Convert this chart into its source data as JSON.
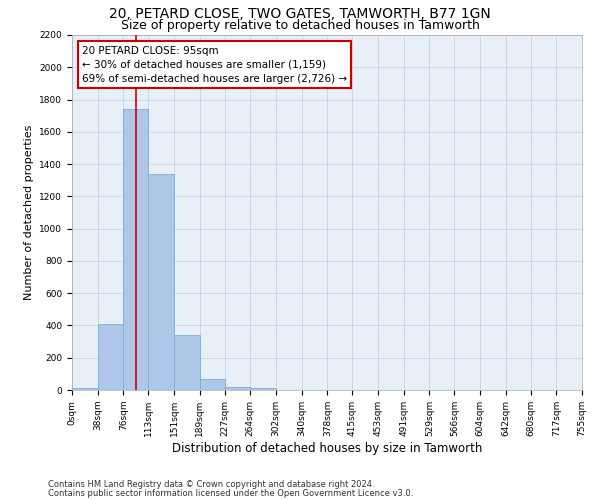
{
  "title": "20, PETARD CLOSE, TWO GATES, TAMWORTH, B77 1GN",
  "subtitle": "Size of property relative to detached houses in Tamworth",
  "xlabel": "Distribution of detached houses by size in Tamworth",
  "ylabel": "Number of detached properties",
  "bin_edges": [
    0,
    38,
    76,
    113,
    151,
    189,
    227,
    264,
    302,
    340,
    378,
    415,
    453,
    491,
    529,
    566,
    604,
    642,
    680,
    717,
    755
  ],
  "bar_heights": [
    15,
    410,
    1740,
    1340,
    340,
    70,
    20,
    15,
    0,
    0,
    0,
    0,
    0,
    0,
    0,
    0,
    0,
    0,
    0,
    0
  ],
  "bar_color": "#aec6e8",
  "bar_edge_color": "#7aafd4",
  "property_size": 95,
  "red_line_color": "#cc0000",
  "annotation_text": "20 PETARD CLOSE: 95sqm\n← 30% of detached houses are smaller (1,159)\n69% of semi-detached houses are larger (2,726) →",
  "annotation_box_color": "#cc0000",
  "ylim": [
    0,
    2200
  ],
  "yticks": [
    0,
    200,
    400,
    600,
    800,
    1000,
    1200,
    1400,
    1600,
    1800,
    2000,
    2200
  ],
  "grid_color": "#c8d8e8",
  "footer_line1": "Contains HM Land Registry data © Crown copyright and database right 2024.",
  "footer_line2": "Contains public sector information licensed under the Open Government Licence v3.0.",
  "bg_color": "#e8eff7",
  "title_fontsize": 10,
  "subtitle_fontsize": 9,
  "tick_fontsize": 6.5,
  "ylabel_fontsize": 8,
  "xlabel_fontsize": 8.5
}
